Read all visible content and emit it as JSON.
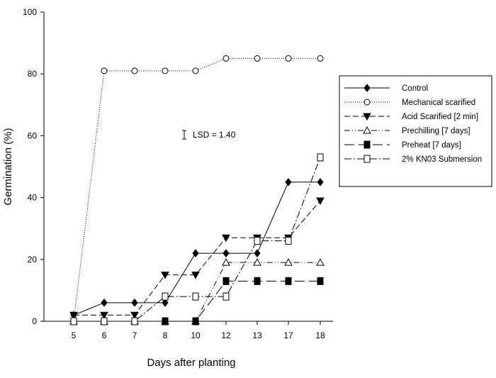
{
  "chart_data": {
    "type": "line",
    "title": "",
    "xlabel": "Days after planting",
    "ylabel": "Germination (%)",
    "categories": [
      "5",
      "6",
      "7",
      "8",
      "10",
      "12",
      "13",
      "17",
      "18"
    ],
    "ylim": [
      0,
      100
    ],
    "yticks": [
      "0",
      "20",
      "40",
      "60",
      "80",
      "100"
    ],
    "grid": false,
    "legend_position": "right",
    "annotation": "LSD = 1.40",
    "series": [
      {
        "name": "Control",
        "marker": "filled-diamond",
        "line": "solid",
        "values": [
          2,
          6,
          6,
          6,
          22,
          22,
          22,
          45,
          45
        ]
      },
      {
        "name": "Mechanical scarified",
        "marker": "open-circle",
        "line": "dotted",
        "values": [
          0,
          81,
          81,
          81,
          81,
          85,
          85,
          85,
          85
        ]
      },
      {
        "name": "Acid Scarified [2 min]",
        "marker": "filled-triangle-down",
        "line": "dashed",
        "values": [
          2,
          2,
          2,
          15,
          15,
          27,
          27,
          27,
          39
        ]
      },
      {
        "name": "Prechilling [7 days]",
        "marker": "open-triangle",
        "line": "dash-dot-dot",
        "values": [
          0,
          0,
          0,
          0,
          0,
          19,
          19,
          19,
          19
        ]
      },
      {
        "name": "Preheat [7 days]",
        "marker": "filled-square",
        "line": "long-dash",
        "values": [
          0,
          0,
          0,
          0,
          0,
          13,
          13,
          13,
          13
        ]
      },
      {
        "name": "2% KN03 Submersion",
        "marker": "open-square",
        "line": "dash-dot",
        "values": [
          0,
          0,
          0,
          8,
          8,
          8,
          26,
          26,
          53
        ]
      }
    ]
  }
}
